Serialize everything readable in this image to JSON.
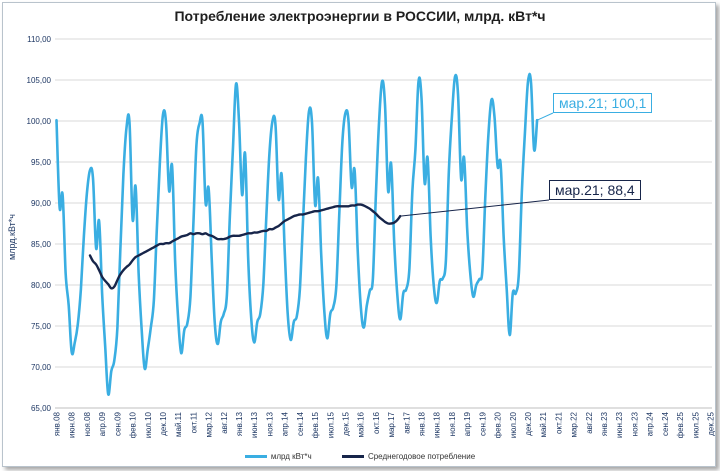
{
  "colors": {
    "monthly": "#3aaee2",
    "average": "#17254a",
    "grid": "#d9d9d9",
    "axis_text": "#1f3864"
  },
  "chart_data": {
    "type": "line",
    "title": "Потребление электроэнергии в РОССИИ, млрд. кВт*ч",
    "ylabel": "млрд.кВт*ч",
    "xlabel": "",
    "ylim": [
      65,
      110
    ],
    "yticks": [
      "65,00",
      "70,00",
      "75,00",
      "80,00",
      "85,00",
      "90,00",
      "95,00",
      "100,00",
      "105,00",
      "110,00"
    ],
    "xtick_labels": [
      "янв.08",
      "июн.08",
      "ноя.08",
      "апр.09",
      "сен.09",
      "фев.10",
      "июл.10",
      "дек.10",
      "май.11",
      "окт.11",
      "мар.12",
      "авг.12",
      "янв.13",
      "июн.13",
      "ноя.13",
      "апр.14",
      "сен.14",
      "фев.15",
      "июл.15",
      "дек.15",
      "май.16",
      "окт.16",
      "мар.17",
      "авг.17",
      "янв.18",
      "июн.18",
      "ноя.18",
      "апр.19",
      "сен.19",
      "фев.20",
      "июл.20",
      "дек.20",
      "май.21",
      "окт.21",
      "мар.22",
      "авг.22",
      "янв.23",
      "июн.23",
      "ноя.23",
      "апр.24",
      "сен.24",
      "фев.25",
      "июл.25",
      "дек.25"
    ],
    "total_months": 216,
    "series": [
      {
        "name": "млрд кВт*ч",
        "start_index": 0,
        "values": [
          100.1,
          89.5,
          91.0,
          81.5,
          77.5,
          71.8,
          73.0,
          75.2,
          79.5,
          86.0,
          91.2,
          94.0,
          93.0,
          84.5,
          87.8,
          79.0,
          72.5,
          66.7,
          69.5,
          70.8,
          74.8,
          84.5,
          93.5,
          99.2,
          99.8,
          88.0,
          92.0,
          81.5,
          74.5,
          69.8,
          72.2,
          74.8,
          78.2,
          87.0,
          95.0,
          100.8,
          99.8,
          91.5,
          94.5,
          83.0,
          75.8,
          71.7,
          74.5,
          75.3,
          78.5,
          87.5,
          97.0,
          99.7,
          99.9,
          90.0,
          91.8,
          83.5,
          75.5,
          72.8,
          75.5,
          76.5,
          78.8,
          88.5,
          96.5,
          104.5,
          100.0,
          91.0,
          96.0,
          83.5,
          76.0,
          73.0,
          75.5,
          76.5,
          80.2,
          88.5,
          96.0,
          100.0,
          99.5,
          90.5,
          93.5,
          84.5,
          76.5,
          73.3,
          75.5,
          76.2,
          79.5,
          87.5,
          95.5,
          101.2,
          99.8,
          89.8,
          93.0,
          84.0,
          77.0,
          73.5,
          76.5,
          77.3,
          80.0,
          89.0,
          97.5,
          101.0,
          100.0,
          92.0,
          94.0,
          84.5,
          77.5,
          74.8,
          77.5,
          79.3,
          80.8,
          91.0,
          99.5,
          104.8,
          102.0,
          91.5,
          94.8,
          85.5,
          79.0,
          75.8,
          79.0,
          79.5,
          82.0,
          91.5,
          96.5,
          104.8,
          102.8,
          92.5,
          95.5,
          86.0,
          80.0,
          77.8,
          80.5,
          80.8,
          83.0,
          94.0,
          100.5,
          105.4,
          103.3,
          93.0,
          95.5,
          87.0,
          81.5,
          78.6,
          80.0,
          80.7,
          81.8,
          91.0,
          98.3,
          102.6,
          100.5,
          94.5,
          94.8,
          86.0,
          79.5,
          73.9,
          79.0,
          79.0,
          81.5,
          91.5,
          98.5,
          104.8,
          104.7,
          96.5,
          100.1
        ]
      },
      {
        "name": "Среднегодовое потребление",
        "start_index": 11,
        "values": [
          83.6,
          82.9,
          82.5,
          81.8,
          81.0,
          80.5,
          80.1,
          79.6,
          79.8,
          80.6,
          81.3,
          81.8,
          82.2,
          82.5,
          83.0,
          83.4,
          83.6,
          83.8,
          84.0,
          84.2,
          84.4,
          84.6,
          84.8,
          85.0,
          85.0,
          85.1,
          85.1,
          85.3,
          85.5,
          85.7,
          85.9,
          86.0,
          86.1,
          86.3,
          86.2,
          86.3,
          86.3,
          86.2,
          86.3,
          86.1,
          86.0,
          85.8,
          85.6,
          85.6,
          85.6,
          85.7,
          85.9,
          86.0,
          86.0,
          86.0,
          86.1,
          86.2,
          86.3,
          86.3,
          86.4,
          86.4,
          86.5,
          86.6,
          86.6,
          86.8,
          86.8,
          87.0,
          87.2,
          87.5,
          87.8,
          88.0,
          88.2,
          88.4,
          88.5,
          88.6,
          88.6,
          88.7,
          88.8,
          88.9,
          89.0,
          89.0,
          89.1,
          89.2,
          89.3,
          89.4,
          89.5,
          89.6,
          89.6,
          89.6,
          89.6,
          89.6,
          89.7,
          89.7,
          89.8,
          89.8,
          89.7,
          89.5,
          89.3,
          89.0,
          88.7,
          88.3,
          88.0,
          87.7,
          87.5,
          87.5,
          87.6,
          87.9,
          88.4
        ]
      }
    ],
    "annotations": [
      {
        "text": "мар.21; 100,1",
        "series": 0
      },
      {
        "text": "мар.21; 88,4",
        "series": 1
      }
    ],
    "legend": [
      "млрд кВт*ч",
      "Среднегодовое потребление"
    ],
    "legend_position": "bottom"
  }
}
